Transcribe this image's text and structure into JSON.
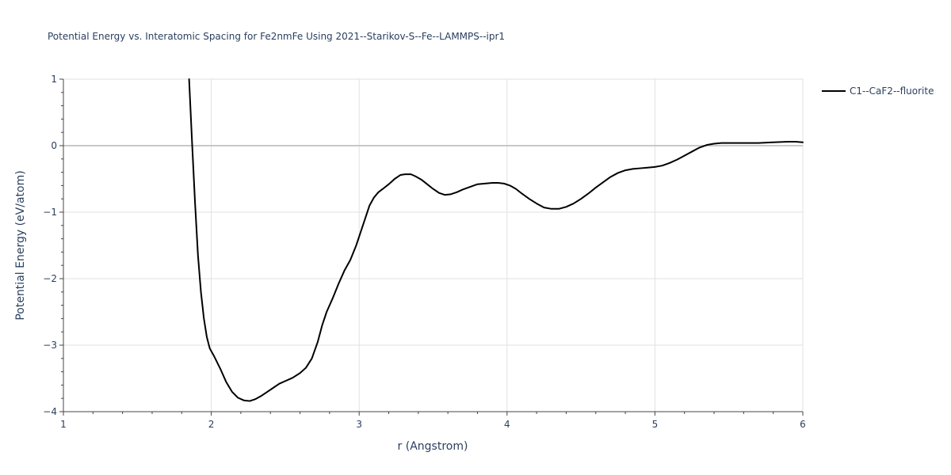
{
  "chart_data": {
    "type": "line",
    "title": "Potential Energy vs. Interatomic Spacing for Fe2nmFe Using 2021--Starikov-S--Fe--LAMMPS--ipr1",
    "xlabel": "r (Angstrom)",
    "ylabel": "Potential Energy (eV/atom)",
    "xlim": [
      1,
      6
    ],
    "ylim": [
      -4,
      1
    ],
    "xticks": [
      1,
      2,
      3,
      4,
      5,
      6
    ],
    "yticks": [
      -4,
      -3,
      -2,
      -1,
      0,
      1
    ],
    "xtick_labels": [
      "1",
      "2",
      "3",
      "4",
      "5",
      "6"
    ],
    "ytick_labels": [
      "−4",
      "−3",
      "−2",
      "−1",
      "0",
      "1"
    ],
    "grid": true,
    "legend_position": "top-right",
    "series": [
      {
        "name": "C1--CaF2--fluorite",
        "color": "#000000",
        "x": [
          1.85,
          1.87,
          1.89,
          1.91,
          1.93,
          1.95,
          1.97,
          1.99,
          2.02,
          2.06,
          2.1,
          2.14,
          2.18,
          2.22,
          2.26,
          2.3,
          2.34,
          2.38,
          2.42,
          2.46,
          2.5,
          2.55,
          2.6,
          2.64,
          2.68,
          2.72,
          2.75,
          2.78,
          2.82,
          2.86,
          2.9,
          2.94,
          2.98,
          3.01,
          3.04,
          3.07,
          3.1,
          3.13,
          3.16,
          3.2,
          3.24,
          3.28,
          3.31,
          3.35,
          3.38,
          3.42,
          3.46,
          3.5,
          3.54,
          3.58,
          3.62,
          3.66,
          3.7,
          3.75,
          3.8,
          3.85,
          3.9,
          3.94,
          3.98,
          4.02,
          4.06,
          4.1,
          4.15,
          4.2,
          4.25,
          4.3,
          4.35,
          4.4,
          4.45,
          4.5,
          4.55,
          4.6,
          4.65,
          4.7,
          4.75,
          4.8,
          4.85,
          4.9,
          4.95,
          5.0,
          5.05,
          5.1,
          5.15,
          5.2,
          5.25,
          5.3,
          5.35,
          5.4,
          5.45,
          5.5,
          5.6,
          5.7,
          5.8,
          5.9,
          5.95,
          6.0
        ],
        "y": [
          1.0,
          0.05,
          -0.85,
          -1.65,
          -2.2,
          -2.6,
          -2.88,
          -3.05,
          -3.17,
          -3.35,
          -3.55,
          -3.7,
          -3.79,
          -3.83,
          -3.84,
          -3.81,
          -3.76,
          -3.7,
          -3.64,
          -3.58,
          -3.54,
          -3.49,
          -3.42,
          -3.34,
          -3.2,
          -2.95,
          -2.7,
          -2.5,
          -2.3,
          -2.08,
          -1.88,
          -1.72,
          -1.5,
          -1.3,
          -1.1,
          -0.9,
          -0.78,
          -0.7,
          -0.65,
          -0.58,
          -0.5,
          -0.44,
          -0.43,
          -0.43,
          -0.46,
          -0.51,
          -0.58,
          -0.65,
          -0.71,
          -0.74,
          -0.73,
          -0.7,
          -0.66,
          -0.62,
          -0.58,
          -0.57,
          -0.56,
          -0.56,
          -0.57,
          -0.6,
          -0.65,
          -0.72,
          -0.8,
          -0.87,
          -0.93,
          -0.95,
          -0.95,
          -0.92,
          -0.87,
          -0.8,
          -0.72,
          -0.63,
          -0.55,
          -0.47,
          -0.41,
          -0.37,
          -0.35,
          -0.34,
          -0.33,
          -0.32,
          -0.3,
          -0.26,
          -0.21,
          -0.15,
          -0.09,
          -0.03,
          0.01,
          0.03,
          0.04,
          0.04,
          0.04,
          0.04,
          0.05,
          0.06,
          0.06,
          0.05
        ]
      }
    ]
  }
}
